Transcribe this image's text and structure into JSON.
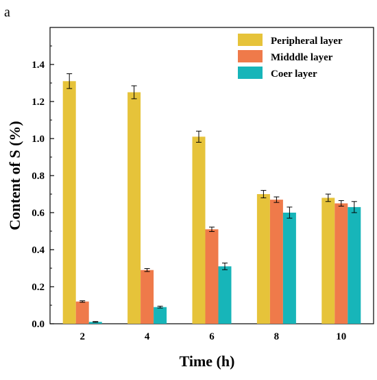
{
  "panel_label": "a",
  "colors": {
    "series": [
      "#E6C33A",
      "#EF7A4A",
      "#17B5B9"
    ],
    "axis": "#000000",
    "error_bar": "#000000"
  },
  "chart_data": {
    "type": "bar",
    "title": "",
    "xlabel": "Time (h)",
    "ylabel": "Content of S (%)",
    "categories": [
      "2",
      "4",
      "6",
      "8",
      "10"
    ],
    "ylim": [
      0,
      1.6
    ],
    "yticks": [
      0.0,
      0.2,
      0.4,
      0.6,
      0.8,
      1.0,
      1.2,
      1.4
    ],
    "ytick_labels": [
      "0.0",
      "0.2",
      "0.4",
      "0.6",
      "0.8",
      "1.0",
      "1.2",
      "1.4"
    ],
    "grid": false,
    "legend_position": "top-right",
    "series": [
      {
        "name": "Peripheral layer",
        "values": [
          1.31,
          1.25,
          1.01,
          0.7,
          0.68
        ],
        "errors": [
          0.04,
          0.035,
          0.03,
          0.02,
          0.02
        ]
      },
      {
        "name": "Midddle layer",
        "values": [
          0.12,
          0.29,
          0.51,
          0.67,
          0.65
        ],
        "errors": [
          0.004,
          0.008,
          0.012,
          0.015,
          0.015
        ]
      },
      {
        "name": "Coer layer",
        "values": [
          0.01,
          0.09,
          0.31,
          0.6,
          0.63
        ],
        "errors": [
          0.002,
          0.005,
          0.018,
          0.03,
          0.03
        ]
      }
    ]
  }
}
